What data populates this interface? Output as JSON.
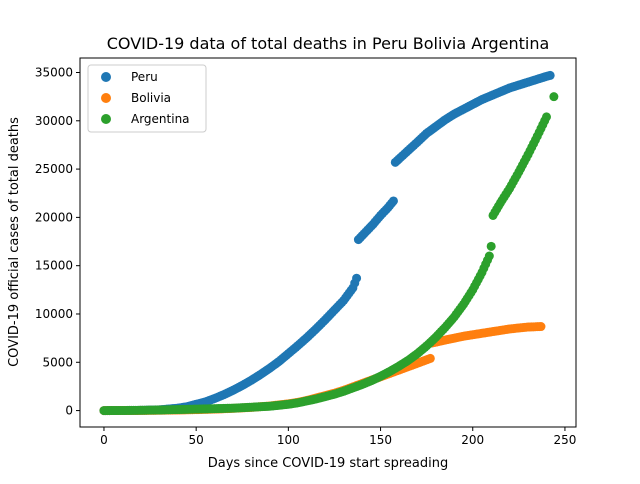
{
  "chart_data": {
    "type": "scatter",
    "title": "COVID-19 data of total deaths in Peru Bolivia Argentina",
    "xlabel": "Days since COVID-19 start spreading",
    "ylabel": "COVID-19 official cases of total deaths",
    "xlim": [
      -13,
      256
    ],
    "ylim": [
      -1700,
      36500
    ],
    "xticks": [
      0,
      50,
      100,
      150,
      200,
      250
    ],
    "yticks": [
      0,
      5000,
      10000,
      15000,
      20000,
      25000,
      30000,
      35000
    ],
    "grid": false,
    "legend_position": "top-left",
    "series": [
      {
        "name": "Peru",
        "color": "#1f77b4",
        "points": [
          [
            0,
            0
          ],
          [
            10,
            5
          ],
          [
            20,
            30
          ],
          [
            30,
            80
          ],
          [
            40,
            250
          ],
          [
            45,
            400
          ],
          [
            50,
            650
          ],
          [
            55,
            900
          ],
          [
            60,
            1250
          ],
          [
            65,
            1650
          ],
          [
            70,
            2100
          ],
          [
            75,
            2600
          ],
          [
            80,
            3150
          ],
          [
            85,
            3750
          ],
          [
            90,
            4400
          ],
          [
            95,
            5100
          ],
          [
            100,
            5900
          ],
          [
            105,
            6700
          ],
          [
            110,
            7550
          ],
          [
            115,
            8450
          ],
          [
            120,
            9400
          ],
          [
            125,
            10400
          ],
          [
            130,
            11400
          ],
          [
            135,
            12700
          ],
          [
            137,
            13700
          ],
          [
            138,
            17700
          ],
          [
            142,
            18500
          ],
          [
            146,
            19300
          ],
          [
            150,
            20200
          ],
          [
            154,
            21000
          ],
          [
            157,
            21700
          ],
          [
            158,
            25700
          ],
          [
            162,
            26400
          ],
          [
            166,
            27100
          ],
          [
            170,
            27800
          ],
          [
            175,
            28700
          ],
          [
            180,
            29400
          ],
          [
            185,
            30100
          ],
          [
            190,
            30700
          ],
          [
            195,
            31200
          ],
          [
            200,
            31700
          ],
          [
            205,
            32200
          ],
          [
            210,
            32600
          ],
          [
            215,
            33000
          ],
          [
            220,
            33400
          ],
          [
            225,
            33700
          ],
          [
            230,
            34000
          ],
          [
            235,
            34300
          ],
          [
            240,
            34600
          ],
          [
            242,
            34700
          ]
        ]
      },
      {
        "name": "Bolivia",
        "color": "#ff7f0e",
        "points": [
          [
            0,
            0
          ],
          [
            10,
            5
          ],
          [
            20,
            15
          ],
          [
            30,
            30
          ],
          [
            40,
            60
          ],
          [
            50,
            100
          ],
          [
            60,
            150
          ],
          [
            70,
            230
          ],
          [
            80,
            330
          ],
          [
            90,
            480
          ],
          [
            100,
            700
          ],
          [
            105,
            850
          ],
          [
            110,
            1050
          ],
          [
            115,
            1300
          ],
          [
            120,
            1550
          ],
          [
            125,
            1800
          ],
          [
            130,
            2100
          ],
          [
            135,
            2450
          ],
          [
            140,
            2800
          ],
          [
            145,
            3150
          ],
          [
            150,
            3500
          ],
          [
            155,
            3850
          ],
          [
            160,
            4200
          ],
          [
            165,
            4550
          ],
          [
            170,
            4900
          ],
          [
            177,
            5400
          ],
          [
            178,
            7000
          ],
          [
            185,
            7300
          ],
          [
            190,
            7500
          ],
          [
            195,
            7700
          ],
          [
            200,
            7850
          ],
          [
            205,
            8000
          ],
          [
            210,
            8150
          ],
          [
            215,
            8300
          ],
          [
            220,
            8450
          ],
          [
            225,
            8550
          ],
          [
            230,
            8650
          ],
          [
            237,
            8700
          ]
        ]
      },
      {
        "name": "Argentina",
        "color": "#2ca02c",
        "points": [
          [
            0,
            0
          ],
          [
            10,
            10
          ],
          [
            20,
            30
          ],
          [
            30,
            60
          ],
          [
            40,
            110
          ],
          [
            50,
            150
          ],
          [
            60,
            200
          ],
          [
            70,
            250
          ],
          [
            80,
            350
          ],
          [
            90,
            450
          ],
          [
            100,
            650
          ],
          [
            105,
            800
          ],
          [
            110,
            1000
          ],
          [
            115,
            1200
          ],
          [
            120,
            1450
          ],
          [
            125,
            1700
          ],
          [
            130,
            2000
          ],
          [
            135,
            2350
          ],
          [
            140,
            2700
          ],
          [
            145,
            3100
          ],
          [
            150,
            3550
          ],
          [
            155,
            4050
          ],
          [
            160,
            4600
          ],
          [
            165,
            5200
          ],
          [
            170,
            5900
          ],
          [
            175,
            6700
          ],
          [
            180,
            7600
          ],
          [
            185,
            8600
          ],
          [
            190,
            9700
          ],
          [
            195,
            11000
          ],
          [
            200,
            12500
          ],
          [
            205,
            14300
          ],
          [
            209,
            16000
          ],
          [
            210,
            17000
          ],
          [
            211,
            20200
          ],
          [
            215,
            21500
          ],
          [
            220,
            23000
          ],
          [
            225,
            24700
          ],
          [
            230,
            26500
          ],
          [
            235,
            28400
          ],
          [
            240,
            30400
          ],
          [
            244,
            32500
          ]
        ]
      }
    ]
  }
}
